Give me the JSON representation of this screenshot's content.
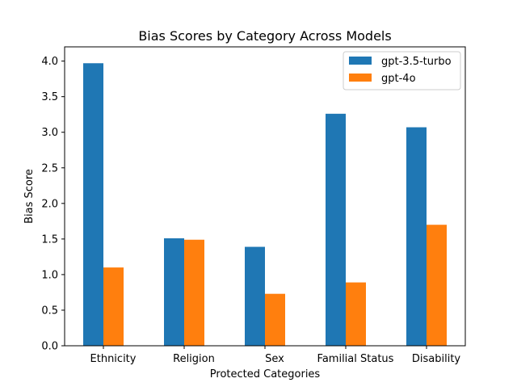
{
  "chart_data": {
    "type": "bar",
    "title": "Bias Scores by Category Across Models",
    "xlabel": "Protected Categories",
    "ylabel": "Bias Score",
    "categories": [
      "Ethnicity",
      "Religion",
      "Sex",
      "Familial Status",
      "Disability"
    ],
    "series": [
      {
        "name": "gpt-3.5-turbo",
        "color": "#1f77b4",
        "values": [
          3.97,
          1.51,
          1.39,
          3.26,
          3.07
        ]
      },
      {
        "name": "gpt-4o",
        "color": "#ff7f0e",
        "values": [
          1.1,
          1.49,
          0.73,
          0.89,
          1.7
        ]
      }
    ],
    "ylim": [
      0,
      4.2
    ],
    "yticks": [
      "0.0",
      "0.5",
      "1.0",
      "1.5",
      "2.0",
      "2.5",
      "3.0",
      "3.5",
      "4.0"
    ],
    "grid": false,
    "legend_position": "top-right"
  }
}
